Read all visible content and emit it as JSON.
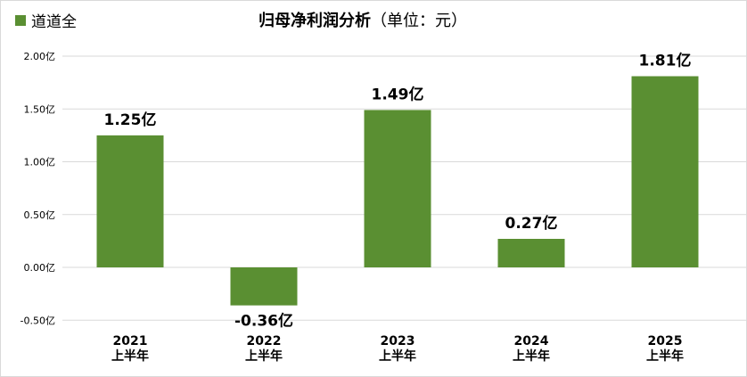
{
  "chart_data": {
    "type": "bar",
    "title": "归母净利润分析",
    "title_unit": "（单位：元）",
    "categories": [
      [
        "2021",
        "上半年"
      ],
      [
        "2022",
        "上半年"
      ],
      [
        "2023",
        "上半年"
      ],
      [
        "2024",
        "上半年"
      ],
      [
        "2025",
        "上半年"
      ]
    ],
    "series": [
      {
        "name": "道道全",
        "values": [
          1.25,
          -0.36,
          1.49,
          0.27,
          1.81
        ],
        "color": "#5a8f32"
      }
    ],
    "data_labels": [
      "1.25亿",
      "-0.36亿",
      "1.49亿",
      "0.27亿",
      "1.81亿"
    ],
    "yticks": [
      2.0,
      1.5,
      1.0,
      0.5,
      0.0,
      -0.5
    ],
    "ytick_labels": [
      "2.00亿",
      "1.50亿",
      "1.00亿",
      "0.50亿",
      "0.00亿",
      "-0.50亿"
    ],
    "ylim": [
      -0.5,
      2.0
    ],
    "grid": true,
    "legend": "top-left"
  }
}
